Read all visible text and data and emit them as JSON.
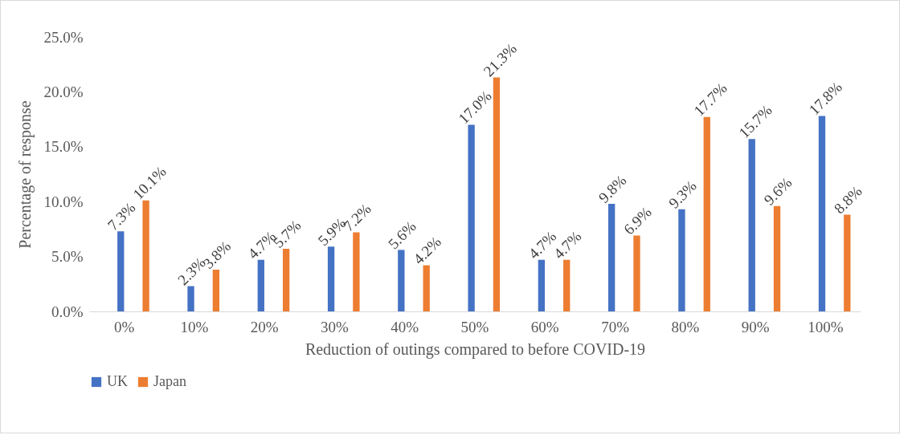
{
  "chart_data": {
    "type": "bar",
    "xlabel": "Reduction of outings compared to before COVID-19",
    "ylabel": "Percentage of response",
    "categories": [
      "0%",
      "10%",
      "20%",
      "30%",
      "40%",
      "50%",
      "60%",
      "70%",
      "80%",
      "90%",
      "100%"
    ],
    "series": [
      {
        "name": "UK",
        "color": "#4472c4",
        "values": [
          7.3,
          2.3,
          4.7,
          5.9,
          5.6,
          17.0,
          4.7,
          9.8,
          9.3,
          15.7,
          17.8
        ],
        "value_labels": [
          "7.3%",
          "2.3%",
          "4.7%",
          "5.9%",
          "5.6%",
          "17.0%",
          "4.7%",
          "9.8%",
          "9.3%",
          "15.7%",
          "17.8%"
        ]
      },
      {
        "name": "Japan",
        "color": "#ed7d31",
        "values": [
          10.1,
          3.8,
          5.7,
          7.2,
          4.2,
          21.3,
          4.7,
          6.9,
          17.7,
          9.6,
          8.8
        ],
        "value_labels": [
          "10.1%",
          "3.8%",
          "5.7%",
          "7.2%",
          "4.2%",
          "21.3%",
          "4.7%",
          "6.9%",
          "17.7%",
          "9.6%",
          "8.8%"
        ]
      }
    ],
    "ylim": [
      0,
      25
    ],
    "yticks": [
      {
        "value": 0,
        "label": "0.0%"
      },
      {
        "value": 5,
        "label": "5.0%"
      },
      {
        "value": 10,
        "label": "10.0%"
      },
      {
        "value": 15,
        "label": "15.0%"
      },
      {
        "value": 20,
        "label": "20.0%"
      },
      {
        "value": 25,
        "label": "25.0%"
      }
    ],
    "grid": false,
    "legend": "bottom"
  }
}
